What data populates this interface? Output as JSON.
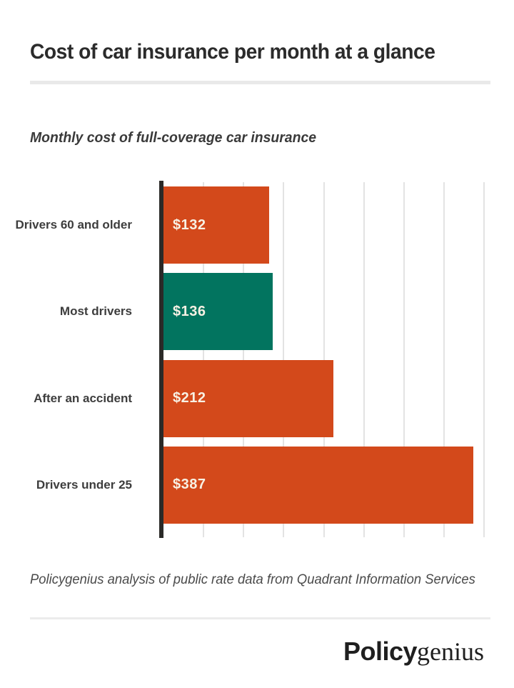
{
  "header": {
    "title": "Cost of car insurance per month at a glance"
  },
  "chart_data": {
    "type": "bar",
    "orientation": "horizontal",
    "title": "Monthly cost of full-coverage car insurance",
    "categories": [
      "Drivers 60 and older",
      "Most drivers",
      "After an accident",
      "Drivers under 25"
    ],
    "values": [
      132,
      136,
      212,
      387
    ],
    "value_labels": [
      "$132",
      "$136",
      "$212",
      "$387"
    ],
    "bar_colors": [
      "#d3491b",
      "#02745f",
      "#d3491b",
      "#d3491b"
    ],
    "xlabel": "",
    "ylabel": "",
    "xlim": [
      0,
      400
    ],
    "gridline_step": 50,
    "grid": "on",
    "legend": "none",
    "axis_color": "#2b2a28",
    "gridline_color": "#e3e3e3",
    "category_label_color": "#3d3d3d",
    "value_label_color": "#f8f1e4"
  },
  "footer": {
    "source_note": "Policygenius analysis of public rate data from Quadrant Information Services",
    "logo": {
      "bold": "Policy",
      "serif": "genius"
    }
  }
}
